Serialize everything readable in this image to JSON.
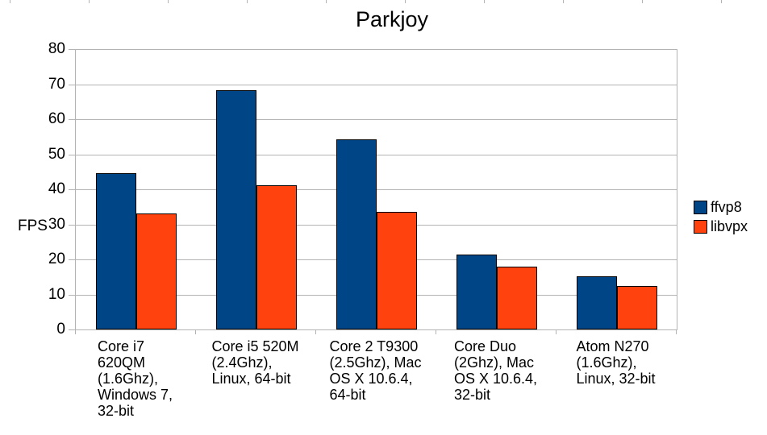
{
  "title": "Parkjoy",
  "y_axis_title": "FPS",
  "colors": {
    "series_ffvp8": "#004586",
    "series_libvpx": "#ff420e",
    "grid": "#b3b3b3",
    "bar_border": "#000000",
    "text": "#000000",
    "background": "#ffffff"
  },
  "legend": {
    "position": "right",
    "items": [
      {
        "label": "ffvp8",
        "color": "#004586"
      },
      {
        "label": "libvpx",
        "color": "#ff420e"
      }
    ]
  },
  "chart_data": {
    "type": "bar",
    "title": "Parkjoy",
    "xlabel": "",
    "ylabel": "FPS",
    "ylim": [
      0,
      80
    ],
    "ytick_step": 10,
    "ytick_labels": [
      "0",
      "10",
      "20",
      "30",
      "40",
      "50",
      "60",
      "70",
      "80"
    ],
    "grid": true,
    "legend_position": "right",
    "categories": [
      "Core i7 620QM (1.6Ghz), Windows 7, 32-bit",
      "Core i5 520M (2.4Ghz), Linux, 64-bit",
      "Core 2 T9300 (2.5Ghz), Mac OS X 10.6.4, 64-bit",
      "Core Duo (2Ghz), Mac OS X 10.6.4, 32-bit",
      "Atom N270 (1.6Ghz), Linux, 32-bit"
    ],
    "categories_display": [
      "Core i7\n620QM\n(1.6Ghz),\nWindows 7,\n32-bit",
      "Core i5 520M\n(2.4Ghz),\nLinux, 64-bit",
      "Core 2 T9300\n(2.5Ghz), Mac\nOS X 10.6.4,\n64-bit",
      "Core Duo\n(2Ghz), Mac\nOS X 10.6.4,\n32-bit",
      "Atom N270\n(1.6Ghz),\nLinux, 32-bit"
    ],
    "series": [
      {
        "name": "ffvp8",
        "color": "#004586",
        "values": [
          44.58,
          68.35,
          54.19,
          21.31,
          15.29
        ]
      },
      {
        "name": "libvpx",
        "color": "#ff420e",
        "values": [
          33.06,
          41.06,
          33.63,
          17.86,
          12.46
        ]
      }
    ]
  }
}
